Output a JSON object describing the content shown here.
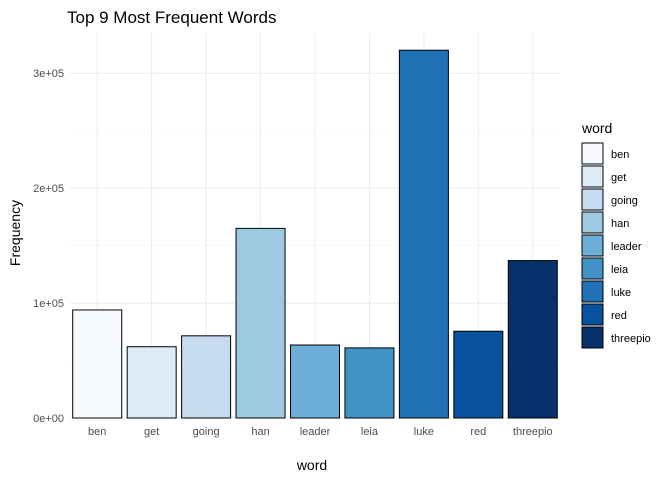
{
  "chart_data": {
    "type": "bar",
    "title": "Top 9 Most Frequent Words",
    "xlabel": "word",
    "ylabel": "Frequency",
    "categories": [
      "ben",
      "get",
      "going",
      "han",
      "leader",
      "leia",
      "luke",
      "red",
      "threepio"
    ],
    "values": [
      94000,
      62000,
      71500,
      165000,
      63500,
      61000,
      320000,
      75500,
      137000
    ],
    "colors": [
      "#F7FBFF",
      "#DEEBF7",
      "#C6DBEF",
      "#9ECAE1",
      "#6BAED6",
      "#4292C6",
      "#2171B5",
      "#08519C",
      "#08306B"
    ],
    "ylim": [
      0,
      335000
    ],
    "yticks": [
      0,
      100000,
      200000,
      300000
    ],
    "ytick_labels": [
      "0e+00",
      "1e+05",
      "2e+05",
      "3e+05"
    ],
    "grid": true,
    "legend": {
      "title": "word",
      "position": "right",
      "entries": [
        "ben",
        "get",
        "going",
        "han",
        "leader",
        "leia",
        "luke",
        "red",
        "threepio"
      ]
    }
  }
}
